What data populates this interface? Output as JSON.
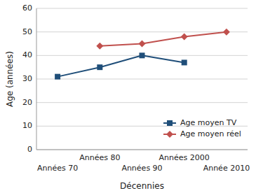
{
  "chart_data": {
    "type": "line",
    "categories": [
      "Années 70",
      "Années 80",
      "Années 90",
      "Années 2000",
      "Année 2010"
    ],
    "series": [
      {
        "name": "Age moyen TV",
        "color": "#1f4e79",
        "marker": "square",
        "values": [
          31,
          35,
          40,
          37,
          null
        ]
      },
      {
        "name": "Age moyen réel",
        "color": "#c0504d",
        "marker": "diamond",
        "values": [
          null,
          44,
          45,
          48,
          50
        ]
      }
    ],
    "x_label": "Décennies",
    "y_label": "Age (années)",
    "ylim": [
      0,
      60
    ],
    "yticks": [
      0,
      10,
      20,
      30,
      40,
      50,
      60
    ],
    "grid": true,
    "legend": "lower right"
  }
}
